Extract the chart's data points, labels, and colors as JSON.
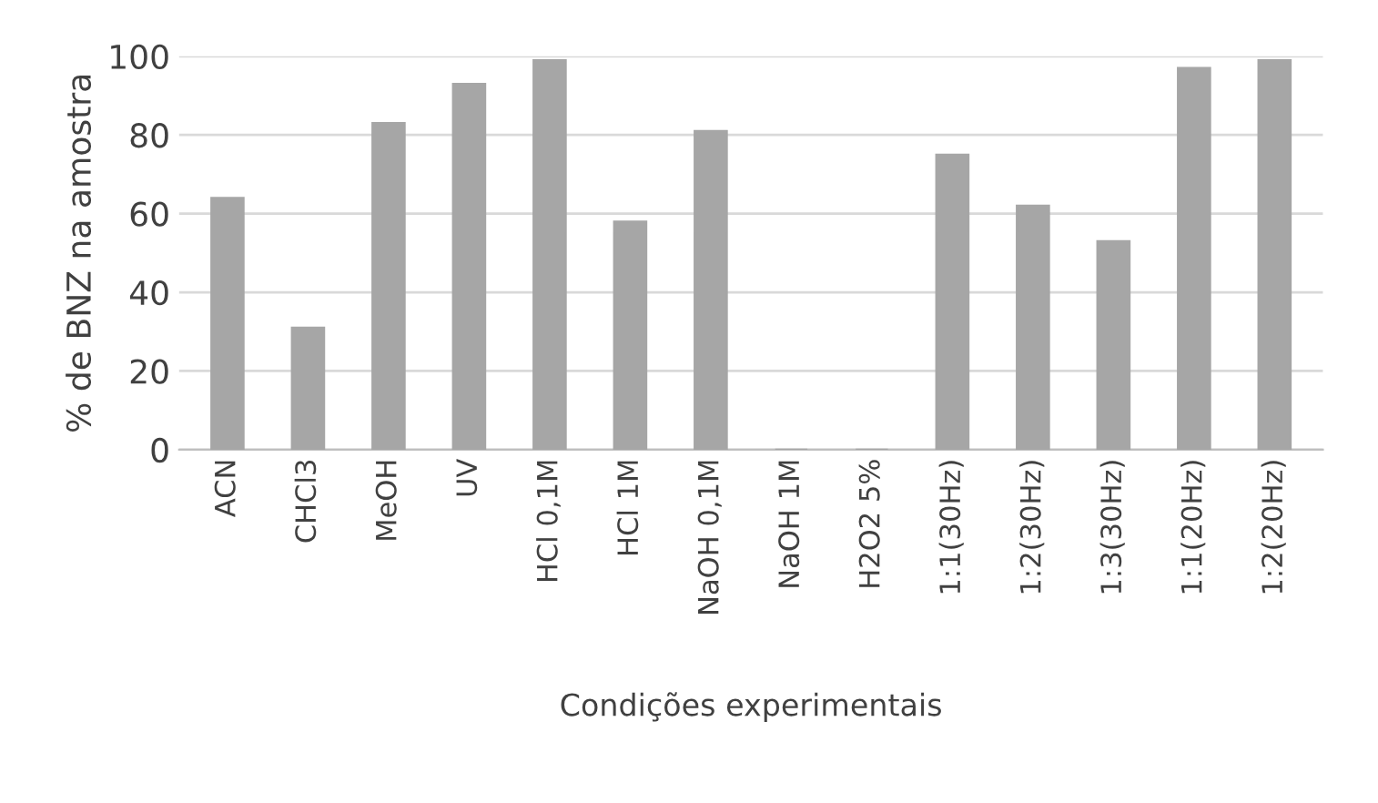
{
  "chart_data": {
    "type": "bar",
    "xlabel": "Condições experimentais",
    "ylabel": "% de BNZ na amostra",
    "categories": [
      "ACN",
      "CHCl3",
      "MeOH",
      "UV",
      "HCl 0,1M",
      "HCl 1M",
      "NaOH 0,1M",
      "NaOH 1M",
      "H2O2 5%",
      "1:1(30Hz)",
      "1:2(30Hz)",
      "1:3(30Hz)",
      "1:1(20Hz)",
      "1:2(20Hz)"
    ],
    "values": [
      64,
      31,
      83,
      93,
      99,
      58,
      81,
      0,
      0,
      75,
      62,
      53,
      97,
      99
    ],
    "color": "#a6a6a6",
    "ylim": [
      0,
      100
    ],
    "yticks": [
      0,
      20,
      40,
      60,
      80,
      100
    ],
    "grid": "y",
    "legend": false
  }
}
